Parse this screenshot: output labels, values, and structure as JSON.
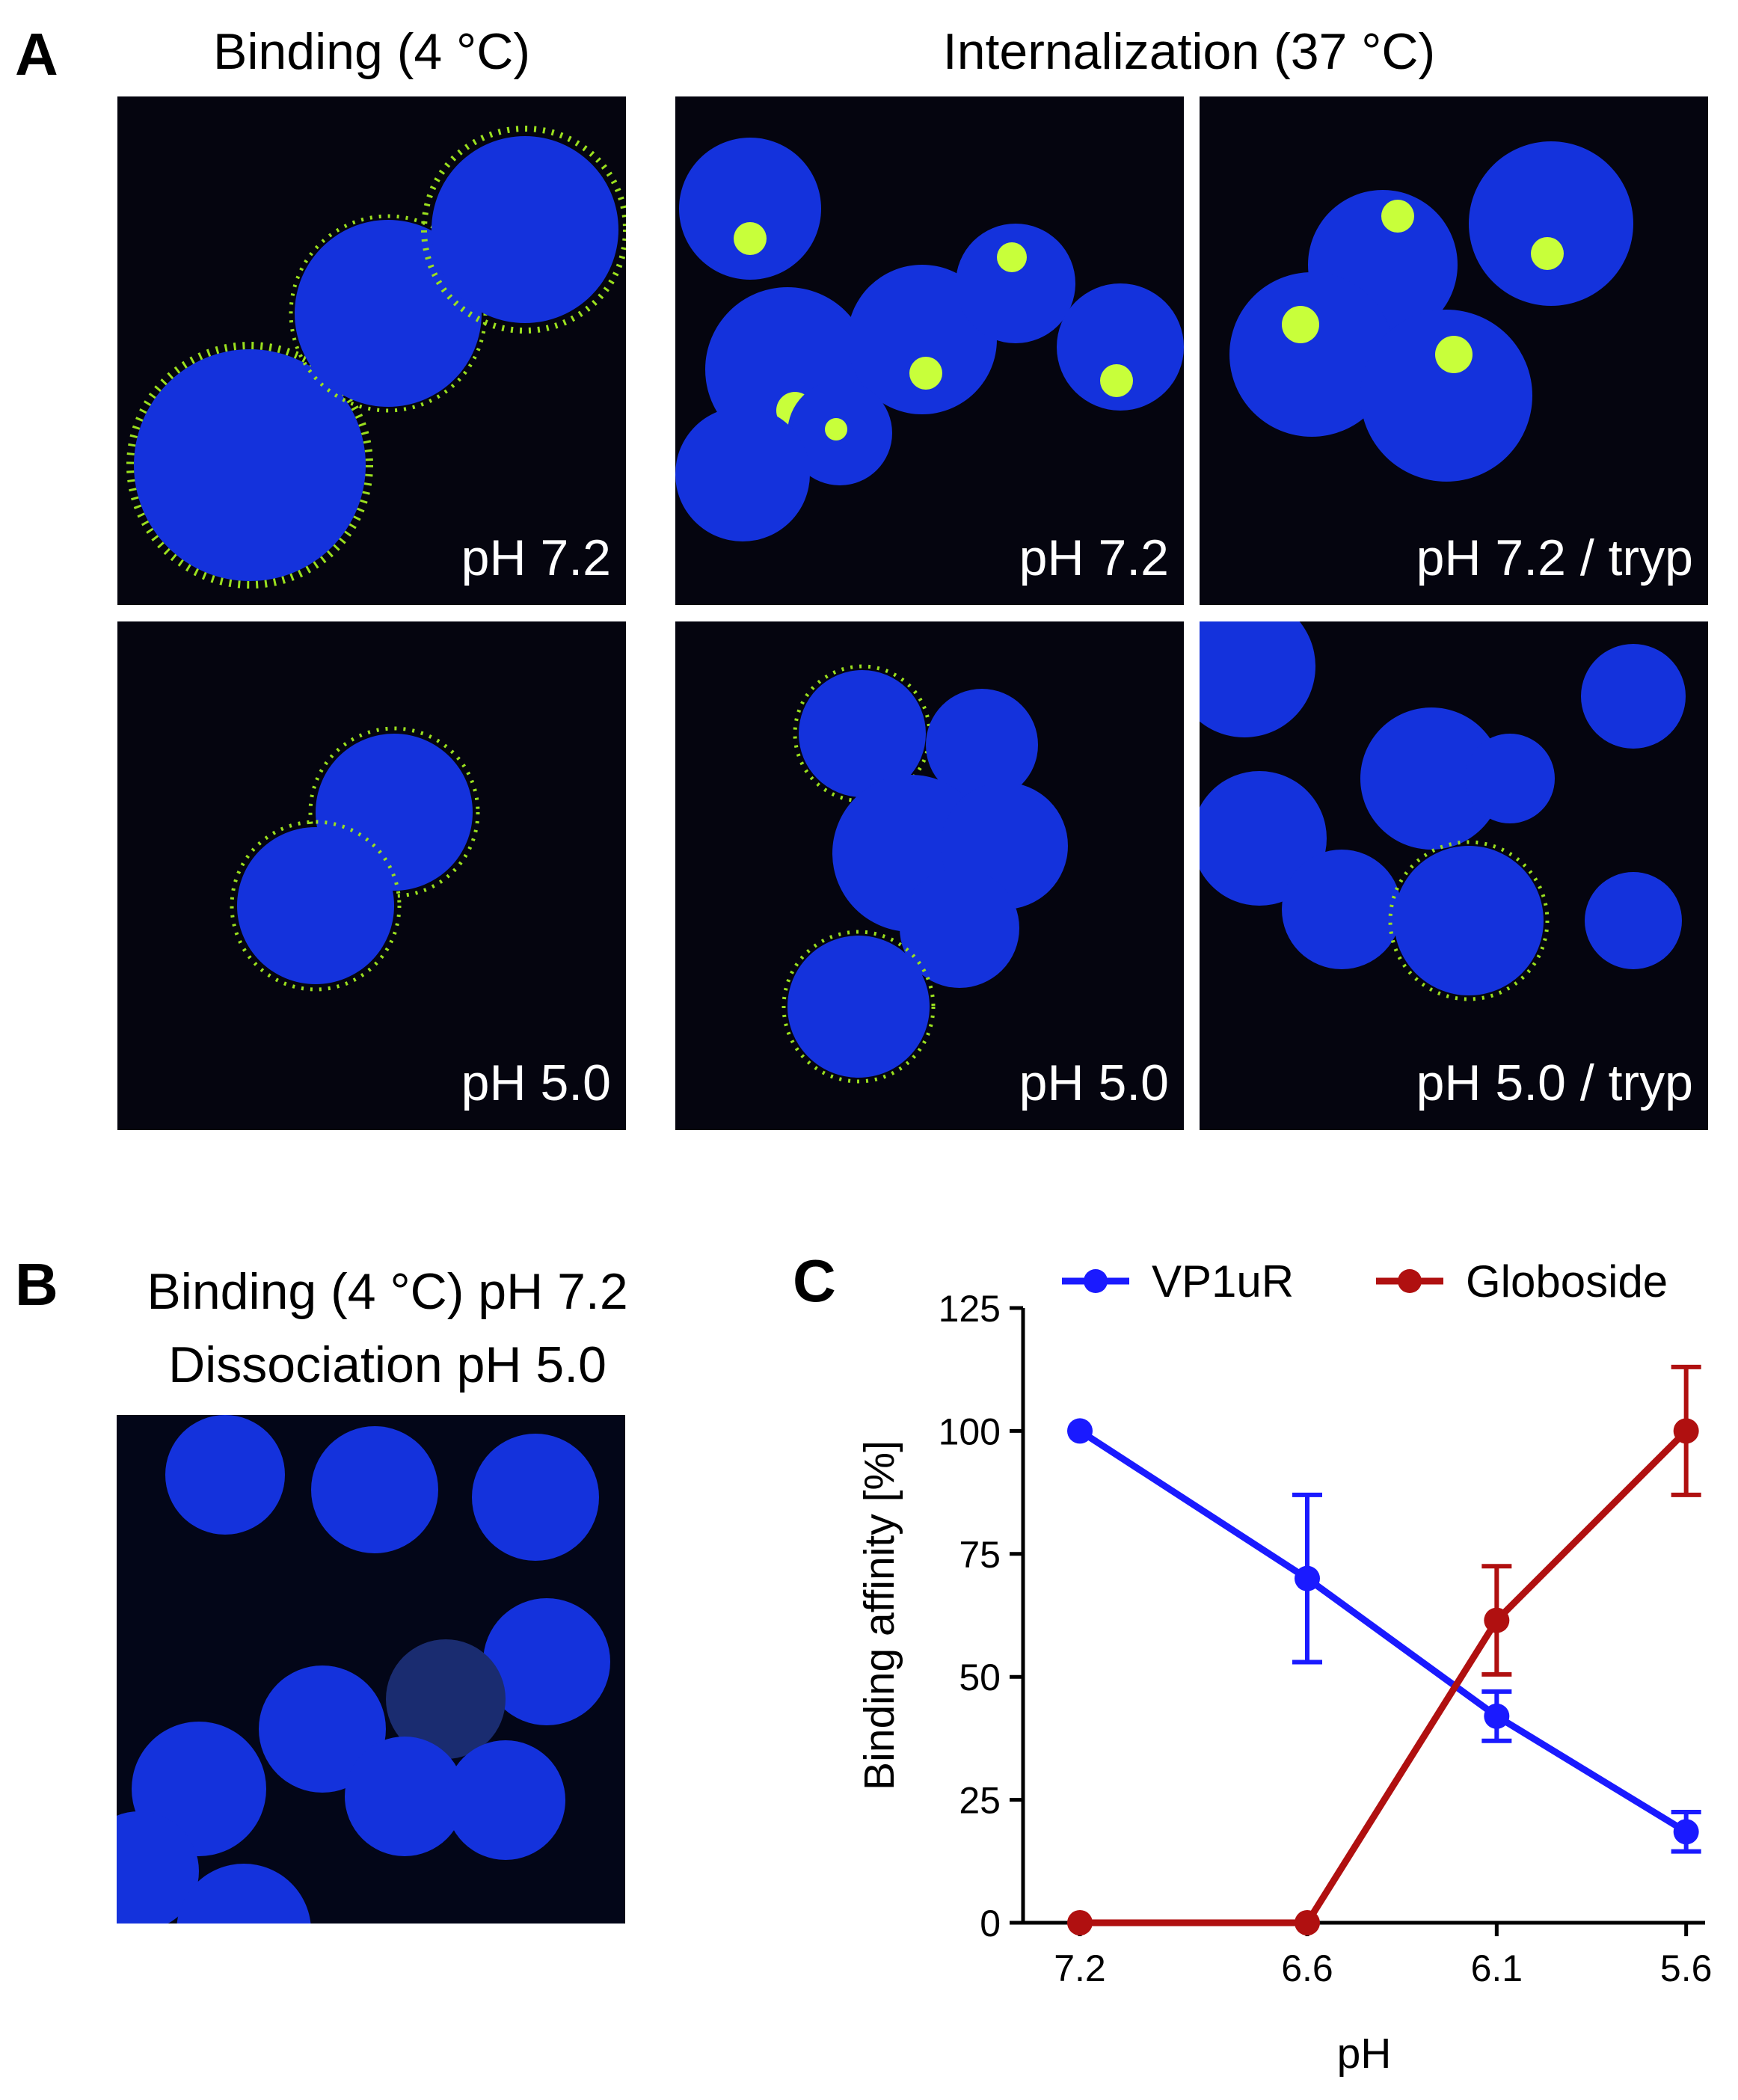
{
  "panels": {
    "A": {
      "label": "A",
      "titles": [
        "Binding (4 °C)",
        "Internalization (37 °C)"
      ],
      "images": [
        "pH 7.2",
        "pH 7.2",
        "pH 7.2 / tryp",
        "pH 5.0",
        "pH 5.0",
        "pH 5.0 / tryp"
      ]
    },
    "B": {
      "label": "B",
      "titles": [
        "Binding (4 °C) pH 7.2",
        "Dissociation pH 5.0"
      ]
    },
    "C": {
      "label": "C"
    }
  },
  "chart_data": {
    "type": "line",
    "x": [
      7.2,
      6.6,
      6.1,
      5.6
    ],
    "xlim": [
      7.35,
      5.55
    ],
    "xticks": [
      7.2,
      6.6,
      6.1,
      5.6
    ],
    "ylim": [
      0,
      125
    ],
    "yticks": [
      0,
      25,
      50,
      75,
      100,
      125
    ],
    "xlabel": "pH",
    "ylabel": "Binding affinity [%]",
    "legend": "top",
    "series": [
      {
        "name": "VP1uR",
        "color": "#1a1aff",
        "values": [
          100,
          70,
          42,
          18.5
        ],
        "errors": [
          0,
          17,
          5,
          4
        ]
      },
      {
        "name": "Globoside",
        "color": "#b01010",
        "values": [
          0,
          0,
          61.5,
          100
        ],
        "errors": [
          0,
          0,
          11,
          13
        ]
      }
    ]
  }
}
